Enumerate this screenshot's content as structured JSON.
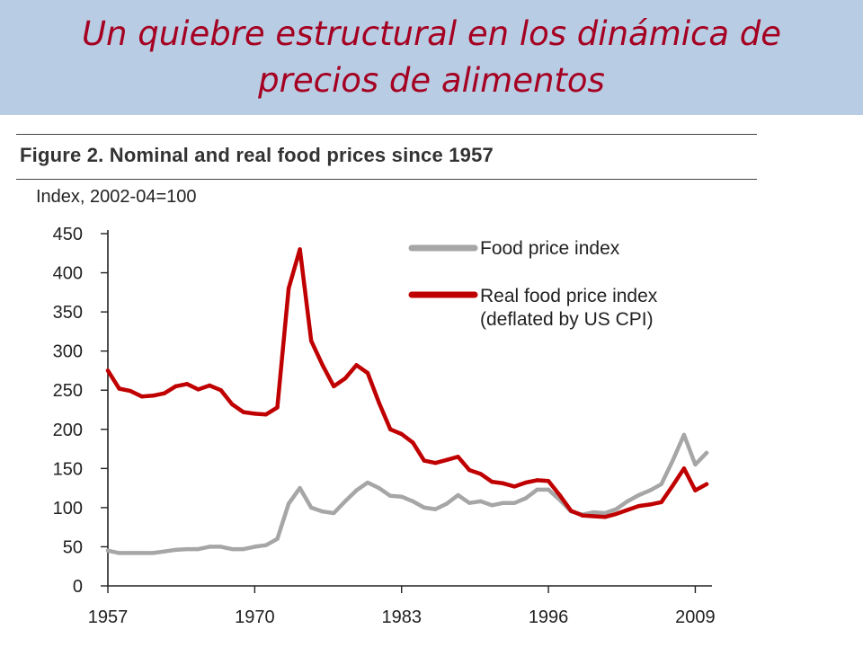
{
  "slide": {
    "title": "Un quiebre estructural en los dinámica de precios de alimentos"
  },
  "colors": {
    "header_bg": "#b8cce4",
    "title_text": "#a50021",
    "food_price_index": "#a6a6a6",
    "real_food_price_index": "#c00000"
  },
  "chart_data": {
    "type": "line",
    "title": "Figure 2. Nominal and real food prices since 1957",
    "ylabel": "Index, 2002-04=100",
    "xlabel": "",
    "xlim": [
      1957,
      2010
    ],
    "ylim": [
      0,
      450
    ],
    "x_ticks": [
      1957,
      1970,
      1983,
      1996,
      2009
    ],
    "y_ticks": [
      0,
      50,
      100,
      150,
      200,
      250,
      300,
      350,
      400,
      450
    ],
    "grid": false,
    "legend_position": "top-right",
    "series": [
      {
        "name": "Food price index",
        "color": "#a6a6a6",
        "x": [
          1957,
          1958,
          1959,
          1960,
          1961,
          1962,
          1963,
          1964,
          1965,
          1966,
          1967,
          1968,
          1969,
          1970,
          1971,
          1972,
          1973,
          1974,
          1975,
          1976,
          1977,
          1978,
          1979,
          1980,
          1981,
          1982,
          1983,
          1984,
          1985,
          1986,
          1987,
          1988,
          1989,
          1990,
          1991,
          1992,
          1993,
          1994,
          1995,
          1996,
          1997,
          1998,
          1999,
          2000,
          2001,
          2002,
          2003,
          2004,
          2005,
          2006,
          2007,
          2008,
          2009,
          2010
        ],
        "values": [
          45,
          42,
          42,
          42,
          42,
          44,
          46,
          47,
          47,
          50,
          50,
          47,
          47,
          50,
          52,
          60,
          105,
          125,
          100,
          95,
          93,
          108,
          122,
          132,
          125,
          115,
          114,
          108,
          100,
          98,
          105,
          116,
          106,
          108,
          103,
          106,
          106,
          112,
          123,
          123,
          110,
          95,
          91,
          94,
          93,
          98,
          108,
          116,
          122,
          130,
          160,
          193,
          155,
          170
        ]
      },
      {
        "name": "Real food price index\n(deflated by US CPI)",
        "label_lines": [
          "Real food price index",
          "(deflated by US CPI)"
        ],
        "color": "#c00000",
        "x": [
          1957,
          1958,
          1959,
          1960,
          1961,
          1962,
          1963,
          1964,
          1965,
          1966,
          1967,
          1968,
          1969,
          1970,
          1971,
          1972,
          1973,
          1974,
          1975,
          1976,
          1977,
          1978,
          1979,
          1980,
          1981,
          1982,
          1983,
          1984,
          1985,
          1986,
          1987,
          1988,
          1989,
          1990,
          1991,
          1992,
          1993,
          1994,
          1995,
          1996,
          1997,
          1998,
          1999,
          2000,
          2001,
          2002,
          2003,
          2004,
          2005,
          2006,
          2007,
          2008,
          2009,
          2010
        ],
        "values": [
          275,
          252,
          249,
          242,
          243,
          246,
          255,
          258,
          251,
          256,
          250,
          232,
          222,
          220,
          219,
          228,
          380,
          430,
          313,
          282,
          255,
          265,
          282,
          272,
          234,
          200,
          194,
          183,
          160,
          157,
          161,
          165,
          148,
          143,
          133,
          131,
          127,
          132,
          135,
          134,
          116,
          96,
          90,
          89,
          88,
          92,
          97,
          102,
          104,
          107,
          128,
          150,
          122,
          130
        ]
      }
    ]
  }
}
